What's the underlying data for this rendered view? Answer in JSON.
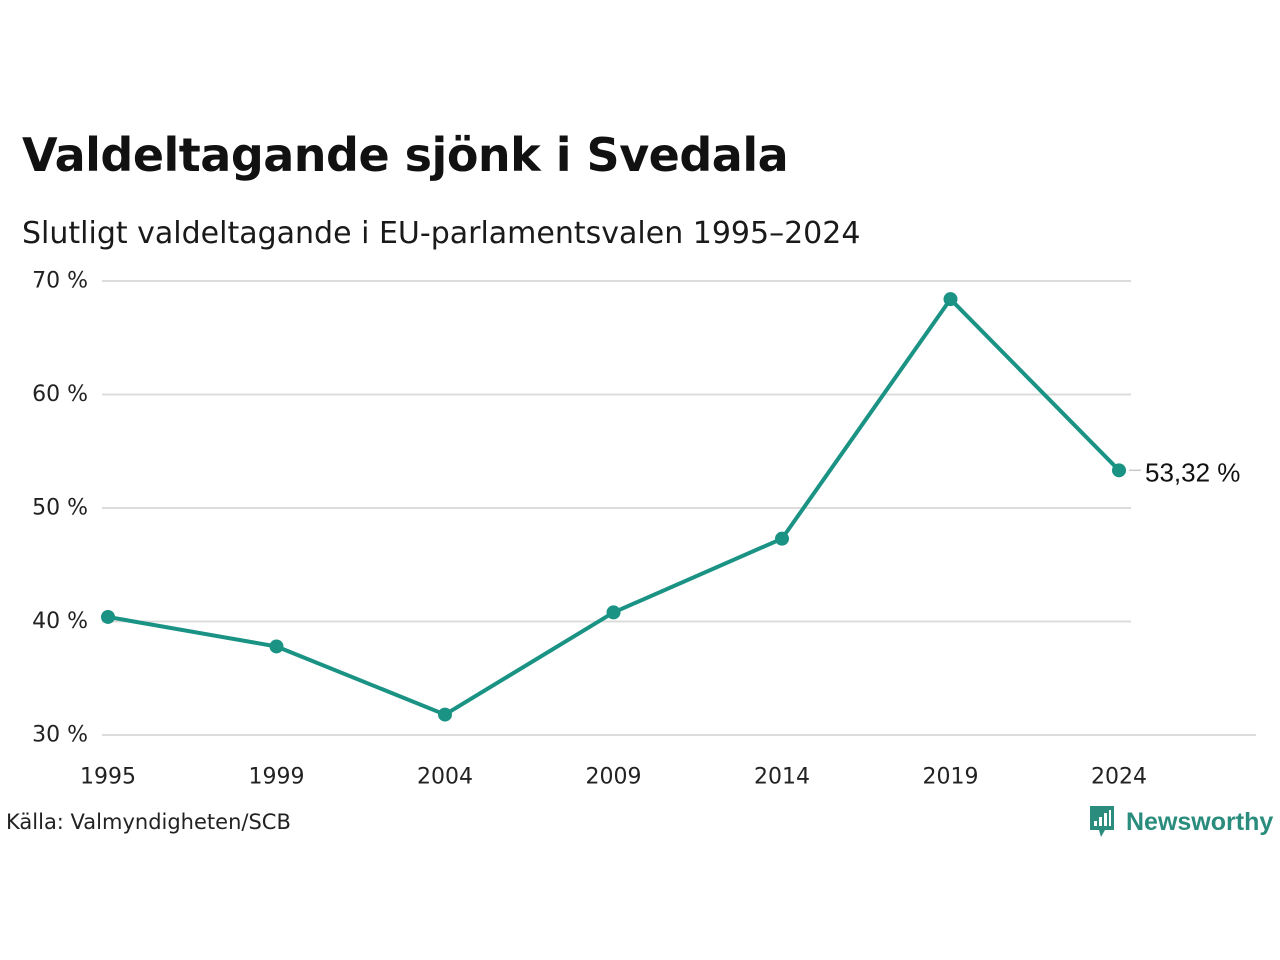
{
  "header": {
    "title": "Valdeltagande sjönk i Svedala",
    "subtitle": "Slutligt valdeltagande i EU-parlamentsvalen 1995–2024"
  },
  "footer": {
    "source": "Källa: Valmyndigheten/SCB",
    "brand": "Newsworthy",
    "brand_icon": "newsworthy-logo-icon"
  },
  "colors": {
    "line": "#1a9384",
    "grid": "#dcdcdc",
    "brand": "#2a8c7c"
  },
  "chart_data": {
    "type": "line",
    "x": [
      "1995",
      "1999",
      "2004",
      "2009",
      "2014",
      "2019",
      "2024"
    ],
    "series": [
      {
        "values": [
          40.4,
          37.8,
          31.8,
          40.8,
          47.3,
          68.4,
          53.32
        ]
      }
    ],
    "ylim": [
      30,
      70
    ],
    "yticks": [
      30,
      40,
      50,
      60,
      70
    ],
    "ytick_labels": [
      "30 %",
      "40 %",
      "50 %",
      "60 %",
      "70 %"
    ],
    "end_label": "53,32 %",
    "grid": true,
    "xlabel": "",
    "ylabel": ""
  }
}
